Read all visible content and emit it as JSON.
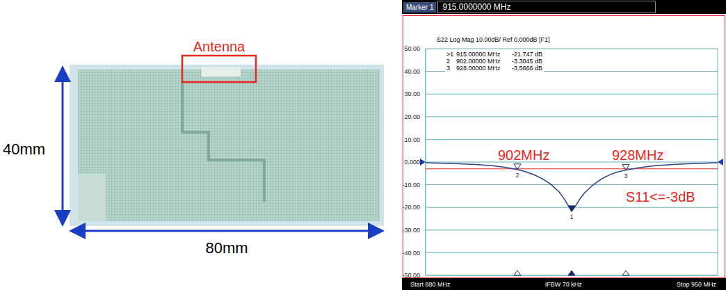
{
  "board": {
    "label": "Antenna",
    "height_label": "40mm",
    "width_label": "80mm"
  },
  "chart_data": {
    "type": "line",
    "title": "S22 Log Mag 10.00dB/ Ref 0.000dB [F1]",
    "header": {
      "marker_label": "Marker 1",
      "marker_value": "915.0000000 MHz"
    },
    "footer": [
      "Start 880 MHz",
      "IFBW 70 kHz",
      "Stop 950 MHz"
    ],
    "x": [
      880,
      884,
      888,
      892,
      896,
      899,
      902,
      904,
      906,
      908,
      910,
      912,
      913,
      914,
      915,
      916,
      917,
      918,
      920,
      922,
      924,
      926,
      928,
      931,
      935,
      940,
      945,
      950
    ],
    "values": [
      -0.3,
      -0.5,
      -0.8,
      -1.1,
      -1.6,
      -2.3,
      -3.3045,
      -4.3,
      -5.6,
      -7.4,
      -9.8,
      -13.2,
      -15.6,
      -18.6,
      -21.747,
      -19.2,
      -16.2,
      -13.8,
      -10.3,
      -7.6,
      -5.7,
      -4.4,
      -3.5666,
      -2.5,
      -1.6,
      -1.0,
      -0.6,
      -0.3
    ],
    "color": "#2b3f8c",
    "xlim": [
      880,
      950
    ],
    "xticks": [
      880,
      887,
      894,
      901,
      908,
      915,
      922,
      929,
      936,
      943,
      950
    ],
    "ylim": [
      -50,
      50
    ],
    "yticks": [
      {
        "value": 50,
        "label": "50.00"
      },
      {
        "value": 40,
        "label": "40.00"
      },
      {
        "value": 30,
        "label": "30.00"
      },
      {
        "value": 20,
        "label": "20.00"
      },
      {
        "value": 10,
        "label": "10.00"
      },
      {
        "value": 0,
        "label": "0.000"
      },
      {
        "value": -10,
        "label": "-10.00"
      },
      {
        "value": -20,
        "label": "-20.00"
      },
      {
        "value": -30,
        "label": "-30.00"
      },
      {
        "value": -40,
        "label": "-40.00"
      },
      {
        "value": -50,
        "label": "-50.00"
      }
    ],
    "grid": true,
    "tick_labels": "y",
    "ref_level": 0,
    "reference_line": -3,
    "markers": [
      {
        "name": "1",
        "table_label": ">1",
        "x": 915,
        "y": -21.747,
        "x_label": "915.00000 MHz",
        "y_label": "-21.747 dB"
      },
      {
        "name": "2",
        "table_label": "2",
        "x": 902,
        "y": -3.3045,
        "x_label": "902.00000 MHz",
        "y_label": "-3.3045 dB"
      },
      {
        "name": "3",
        "table_label": "3",
        "x": 928,
        "y": -3.5666,
        "x_label": "928.00000 MHz",
        "y_label": "-3.5666 dB"
      }
    ],
    "annotations": [
      "902MHz",
      "928MHz",
      "S11<=-3dB"
    ]
  }
}
